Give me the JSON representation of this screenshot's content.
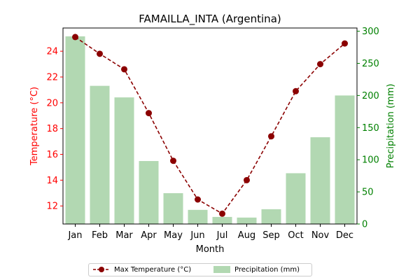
{
  "chart_data": {
    "type": "bar+line",
    "title": "FAMAILLA_INTA (Argentina)",
    "xlabel": "Month",
    "categories": [
      "Jan",
      "Feb",
      "Mar",
      "Apr",
      "May",
      "Jun",
      "Jul",
      "Aug",
      "Sep",
      "Oct",
      "Nov",
      "Dec"
    ],
    "series": [
      {
        "name": "Max Temperature (°C)",
        "type": "line",
        "axis": "left",
        "color": "#8b0000",
        "values": [
          25.1,
          23.8,
          22.6,
          19.2,
          15.5,
          12.5,
          11.4,
          14.0,
          17.4,
          20.9,
          23.0,
          24.6
        ]
      },
      {
        "name": "Precipitation (mm)",
        "type": "bar",
        "axis": "right",
        "color": "#b2d8b2",
        "values": [
          292,
          215,
          197,
          98,
          48,
          22,
          11,
          10,
          23,
          79,
          135,
          200
        ]
      }
    ],
    "ylabel_left": "Temperature (°C)",
    "ylabel_right": "Precipitation (mm)",
    "ylim_left": [
      10.6,
      25.8
    ],
    "ylim_right": [
      0,
      305
    ],
    "yticks_left": [
      12,
      14,
      16,
      18,
      20,
      22,
      24
    ],
    "yticks_right": [
      0,
      50,
      100,
      150,
      200,
      250,
      300
    ],
    "left_axis_color": "#ff0000",
    "right_axis_color": "#008000",
    "grid": false,
    "legend_position": "bottom-center"
  }
}
